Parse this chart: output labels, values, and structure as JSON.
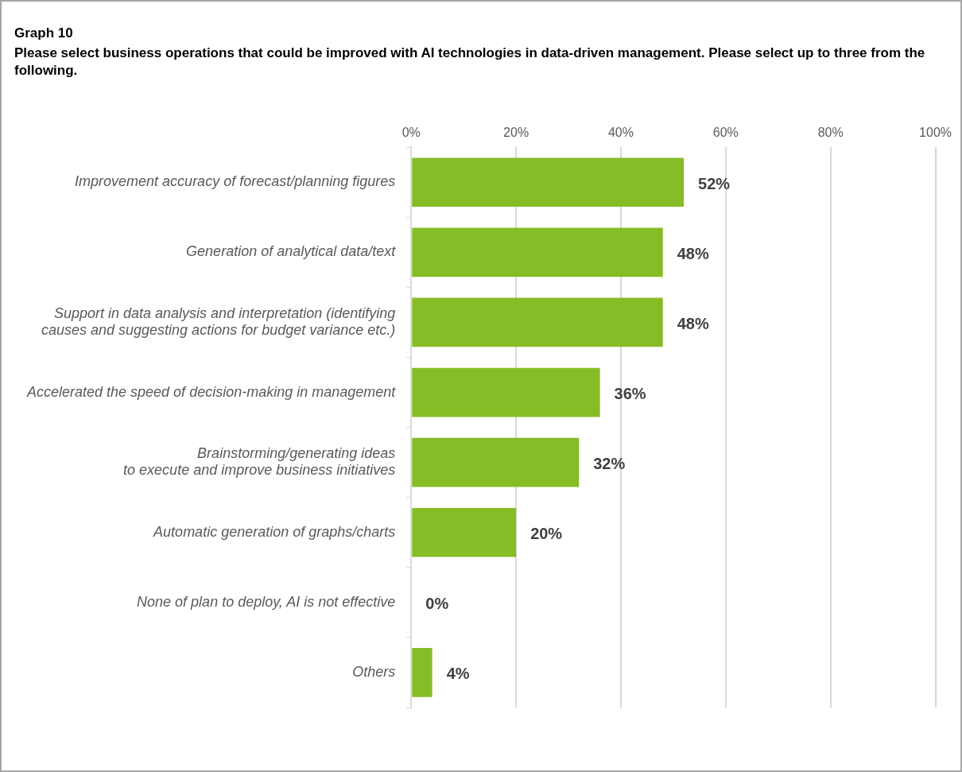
{
  "chart_data": {
    "type": "bar",
    "orientation": "horizontal",
    "title": "Graph 10",
    "subtitle": "Please select business operations that could be improved with AI technologies in data-driven management. Please select up to three from the following.",
    "categories": [
      "Improvement accuracy of forecast/planning figures",
      "Generation of analytical data/text",
      "Support in data analysis and interpretation (identifying\ncauses and suggesting actions for budget variance etc.)",
      "Accelerated the speed of decision-making in management",
      "Brainstorming/generating ideas\nto execute and improve business initiatives",
      "Automatic generation of graphs/charts",
      "None of plan to deploy, AI is not effective",
      "Others"
    ],
    "values": [
      52,
      48,
      48,
      36,
      32,
      20,
      0,
      4
    ],
    "value_labels": [
      "52%",
      "48%",
      "48%",
      "36%",
      "32%",
      "20%",
      "0%",
      "4%"
    ],
    "color": "#86bc25",
    "xlim": [
      0,
      100
    ],
    "xticks": [
      {
        "value": 0,
        "label": "0%"
      },
      {
        "value": 20,
        "label": "20%"
      },
      {
        "value": 40,
        "label": "40%"
      },
      {
        "value": 60,
        "label": "60%"
      },
      {
        "value": 80,
        "label": "80%"
      },
      {
        "value": 100,
        "label": "100%"
      }
    ],
    "grid": "x",
    "legend": false
  }
}
